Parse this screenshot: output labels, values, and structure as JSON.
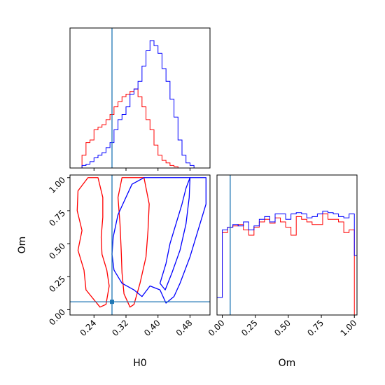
{
  "colors": {
    "series_a": "#ff0000",
    "series_b": "#0000ff",
    "truth": "#1f77b4",
    "axes": "#000000",
    "background": "#ffffff"
  },
  "chart_data": {
    "type": "corner",
    "parameters": [
      "H0",
      "Om"
    ],
    "truth": {
      "H0": 0.285,
      "Om": 0.06
    },
    "ranges": {
      "H0": [
        0.18,
        0.53
      ],
      "Om": [
        -0.04,
        1.02
      ]
    },
    "ticks": {
      "H0": [
        "0.24",
        "0.32",
        "0.40",
        "0.48"
      ],
      "Om": [
        "0.00",
        "0.25",
        "0.50",
        "0.75",
        "1.00"
      ]
    },
    "xlabels": {
      "H0": "H0",
      "Om": "Om"
    },
    "ylabel": "Om",
    "hist_H0": {
      "bin_edges": [
        0.21,
        0.22,
        0.23,
        0.24,
        0.25,
        0.26,
        0.27,
        0.28,
        0.29,
        0.3,
        0.31,
        0.32,
        0.33,
        0.34,
        0.35,
        0.36,
        0.37,
        0.38,
        0.39,
        0.4,
        0.41,
        0.42,
        0.43,
        0.44,
        0.45,
        0.46,
        0.47,
        0.48,
        0.49,
        0.5,
        0.51
      ],
      "series": [
        {
          "color": "red",
          "values": [
            0.1,
            0.2,
            0.22,
            0.3,
            0.32,
            0.34,
            0.38,
            0.42,
            0.48,
            0.52,
            0.56,
            0.58,
            0.6,
            0.62,
            0.56,
            0.48,
            0.38,
            0.3,
            0.18,
            0.1,
            0.06,
            0.04,
            0.02,
            0.01,
            0.0,
            0.0,
            0.0,
            0.0,
            0.0,
            0.0
          ]
        },
        {
          "color": "blue",
          "values": [
            0.02,
            0.03,
            0.05,
            0.08,
            0.1,
            0.12,
            0.16,
            0.2,
            0.3,
            0.38,
            0.42,
            0.48,
            0.58,
            0.62,
            0.68,
            0.8,
            0.92,
            1.0,
            0.96,
            0.9,
            0.78,
            0.68,
            0.54,
            0.4,
            0.22,
            0.1,
            0.04,
            0.02,
            0.0,
            0.0
          ]
        }
      ]
    },
    "hist_Om": {
      "bin_edges": [
        0.0,
        0.04,
        0.08,
        0.12,
        0.16,
        0.2,
        0.24,
        0.28,
        0.32,
        0.36,
        0.4,
        0.44,
        0.48,
        0.52,
        0.56,
        0.6,
        0.64,
        0.68,
        0.72,
        0.76,
        0.8,
        0.84,
        0.88,
        0.92,
        0.96,
        1.0
      ],
      "series": [
        {
          "color": "red",
          "values": [
            0.62,
            0.66,
            0.67,
            0.68,
            0.64,
            0.6,
            0.66,
            0.7,
            0.72,
            0.69,
            0.73,
            0.7,
            0.66,
            0.6,
            0.74,
            0.72,
            0.7,
            0.68,
            0.68,
            0.76,
            0.72,
            0.72,
            0.7,
            0.62,
            0.64
          ]
        },
        {
          "color": "blue",
          "values": [
            0.64,
            0.66,
            0.68,
            0.67,
            0.7,
            0.64,
            0.67,
            0.72,
            0.74,
            0.7,
            0.76,
            0.76,
            0.72,
            0.76,
            0.77,
            0.76,
            0.73,
            0.74,
            0.76,
            0.78,
            0.77,
            0.76,
            0.74,
            0.73,
            0.76
          ]
        }
      ]
    },
    "contours": {
      "series": [
        {
          "color": "red",
          "levels": [
            {
              "H0": [
                0.225,
                0.2,
                0.198,
                0.21,
                0.2,
                0.215,
                0.22,
                0.255,
                0.27,
                0.278,
                0.272,
                0.26,
                0.258,
                0.262,
                0.262,
                0.25,
                0.245,
                0.24,
                0.225
              ],
              "Om": [
                1.0,
                0.9,
                0.75,
                0.6,
                0.45,
                0.3,
                0.15,
                0.02,
                0.04,
                0.18,
                0.3,
                0.42,
                0.55,
                0.7,
                0.85,
                1.0,
                1.0,
                1.0,
                1.0
              ]
            },
            {
              "H0": [
                0.31,
                0.3,
                0.305,
                0.308,
                0.31,
                0.315,
                0.33,
                0.34,
                0.355,
                0.37,
                0.375,
                0.378,
                0.365,
                0.36,
                0.355,
                0.345,
                0.34,
                0.33,
                0.31
              ],
              "Om": [
                1.0,
                0.85,
                0.65,
                0.45,
                0.28,
                0.12,
                0.02,
                0.04,
                0.2,
                0.4,
                0.6,
                0.8,
                1.0,
                1.0,
                1.0,
                1.0,
                1.0,
                1.0,
                1.0
              ]
            }
          ]
        },
        {
          "color": "blue",
          "levels": [
            {
              "H0": [
                0.29,
                0.285,
                0.288,
                0.3,
                0.335,
                0.365,
                0.38,
                0.41,
                0.45,
                0.47,
                0.5,
                0.52,
                0.52,
                0.5,
                0.48,
                0.455,
                0.44,
                0.42,
                0.405,
                0.38,
                0.36,
                0.34,
                0.31
              ],
              "Om": [
                0.3,
                0.42,
                0.55,
                0.72,
                0.95,
                1.0,
                1.0,
                1.0,
                1.0,
                1.0,
                1.0,
                1.0,
                0.8,
                0.6,
                0.4,
                0.2,
                0.1,
                0.05,
                0.15,
                0.18,
                0.1,
                0.15,
                0.2
              ]
            },
            {
              "H0": [
                0.405,
                0.42,
                0.43,
                0.445,
                0.46,
                0.47,
                0.48,
                0.478,
                0.47,
                0.455,
                0.435,
                0.418,
                0.405
              ],
              "Om": [
                0.2,
                0.35,
                0.5,
                0.65,
                0.8,
                0.92,
                1.0,
                0.85,
                0.65,
                0.45,
                0.28,
                0.15,
                0.2
              ]
            }
          ]
        }
      ]
    }
  }
}
